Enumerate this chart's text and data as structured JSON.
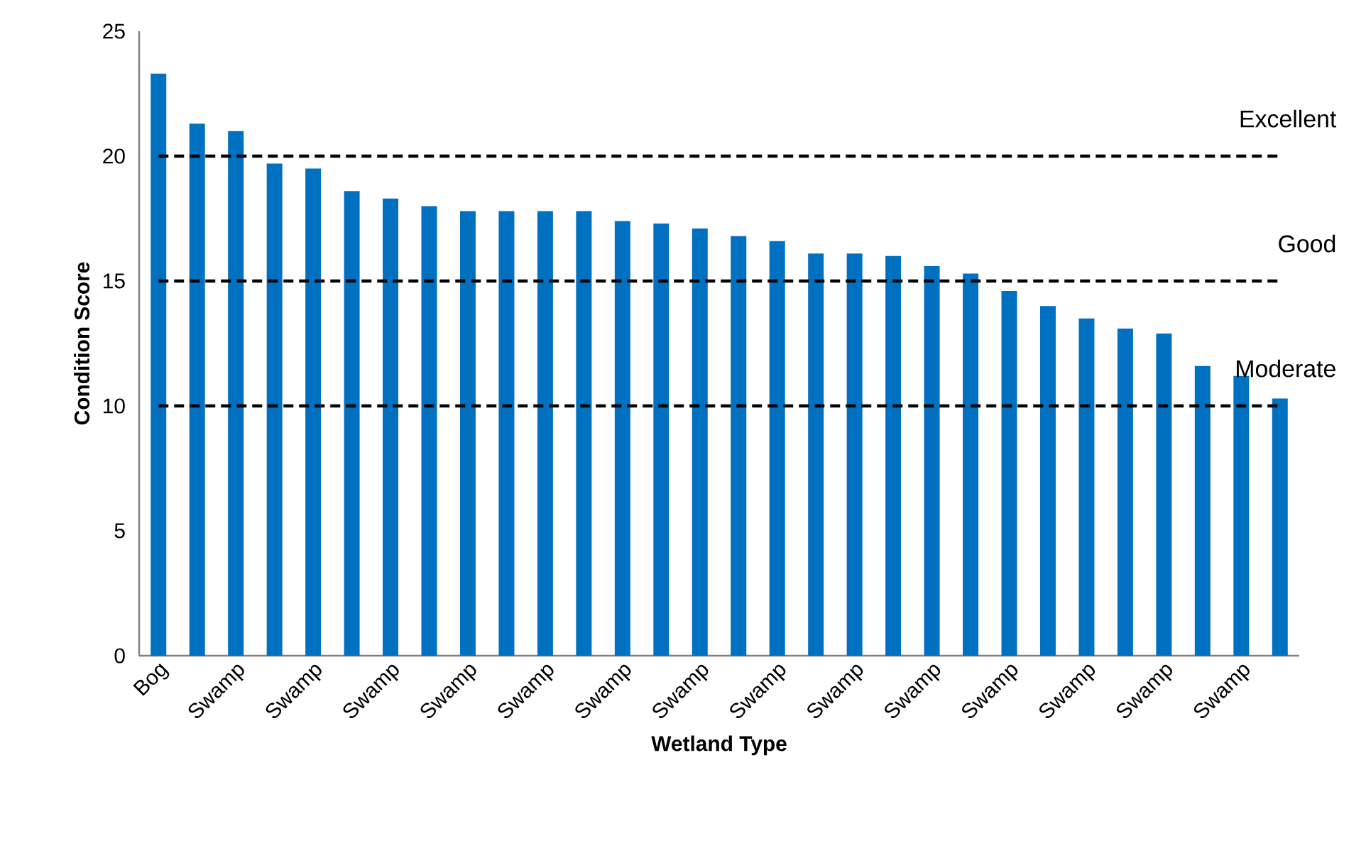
{
  "chart_data": {
    "type": "bar",
    "xlabel": "Wetland Type",
    "ylabel": "Condition Score",
    "categories": [
      "Bog",
      null,
      "Swamp",
      null,
      "Swamp",
      null,
      "Swamp",
      null,
      "Swamp",
      null,
      "Swamp",
      null,
      "Swamp",
      null,
      "Swamp",
      null,
      "Swamp",
      null,
      "Swamp",
      null,
      "Swamp",
      null,
      "Swamp",
      null,
      "Swamp",
      null,
      "Swamp",
      null,
      "Swamp",
      null
    ],
    "values": [
      23.3,
      21.3,
      21.0,
      19.7,
      19.5,
      18.6,
      18.3,
      18.0,
      17.8,
      17.8,
      17.8,
      17.8,
      17.4,
      17.3,
      17.1,
      16.8,
      16.6,
      16.1,
      16.1,
      16.0,
      15.6,
      15.3,
      14.6,
      14.0,
      13.5,
      13.1,
      12.9,
      11.6,
      11.2,
      10.3
    ],
    "color": "#0070c0",
    "ylim": [
      0,
      25
    ],
    "yticks": [
      0,
      5,
      10,
      15,
      20,
      25
    ],
    "grid": false,
    "ref_lines": [
      {
        "axis": "y",
        "value": 20,
        "label": "Excellent",
        "color": "#000000",
        "line_style": "dashed"
      },
      {
        "axis": "y",
        "value": 15,
        "label": "Good",
        "color": "#000000",
        "line_style": "dashed"
      },
      {
        "axis": "y",
        "value": 10,
        "label": "Moderate",
        "color": "#000000",
        "line_style": "dashed"
      }
    ]
  }
}
